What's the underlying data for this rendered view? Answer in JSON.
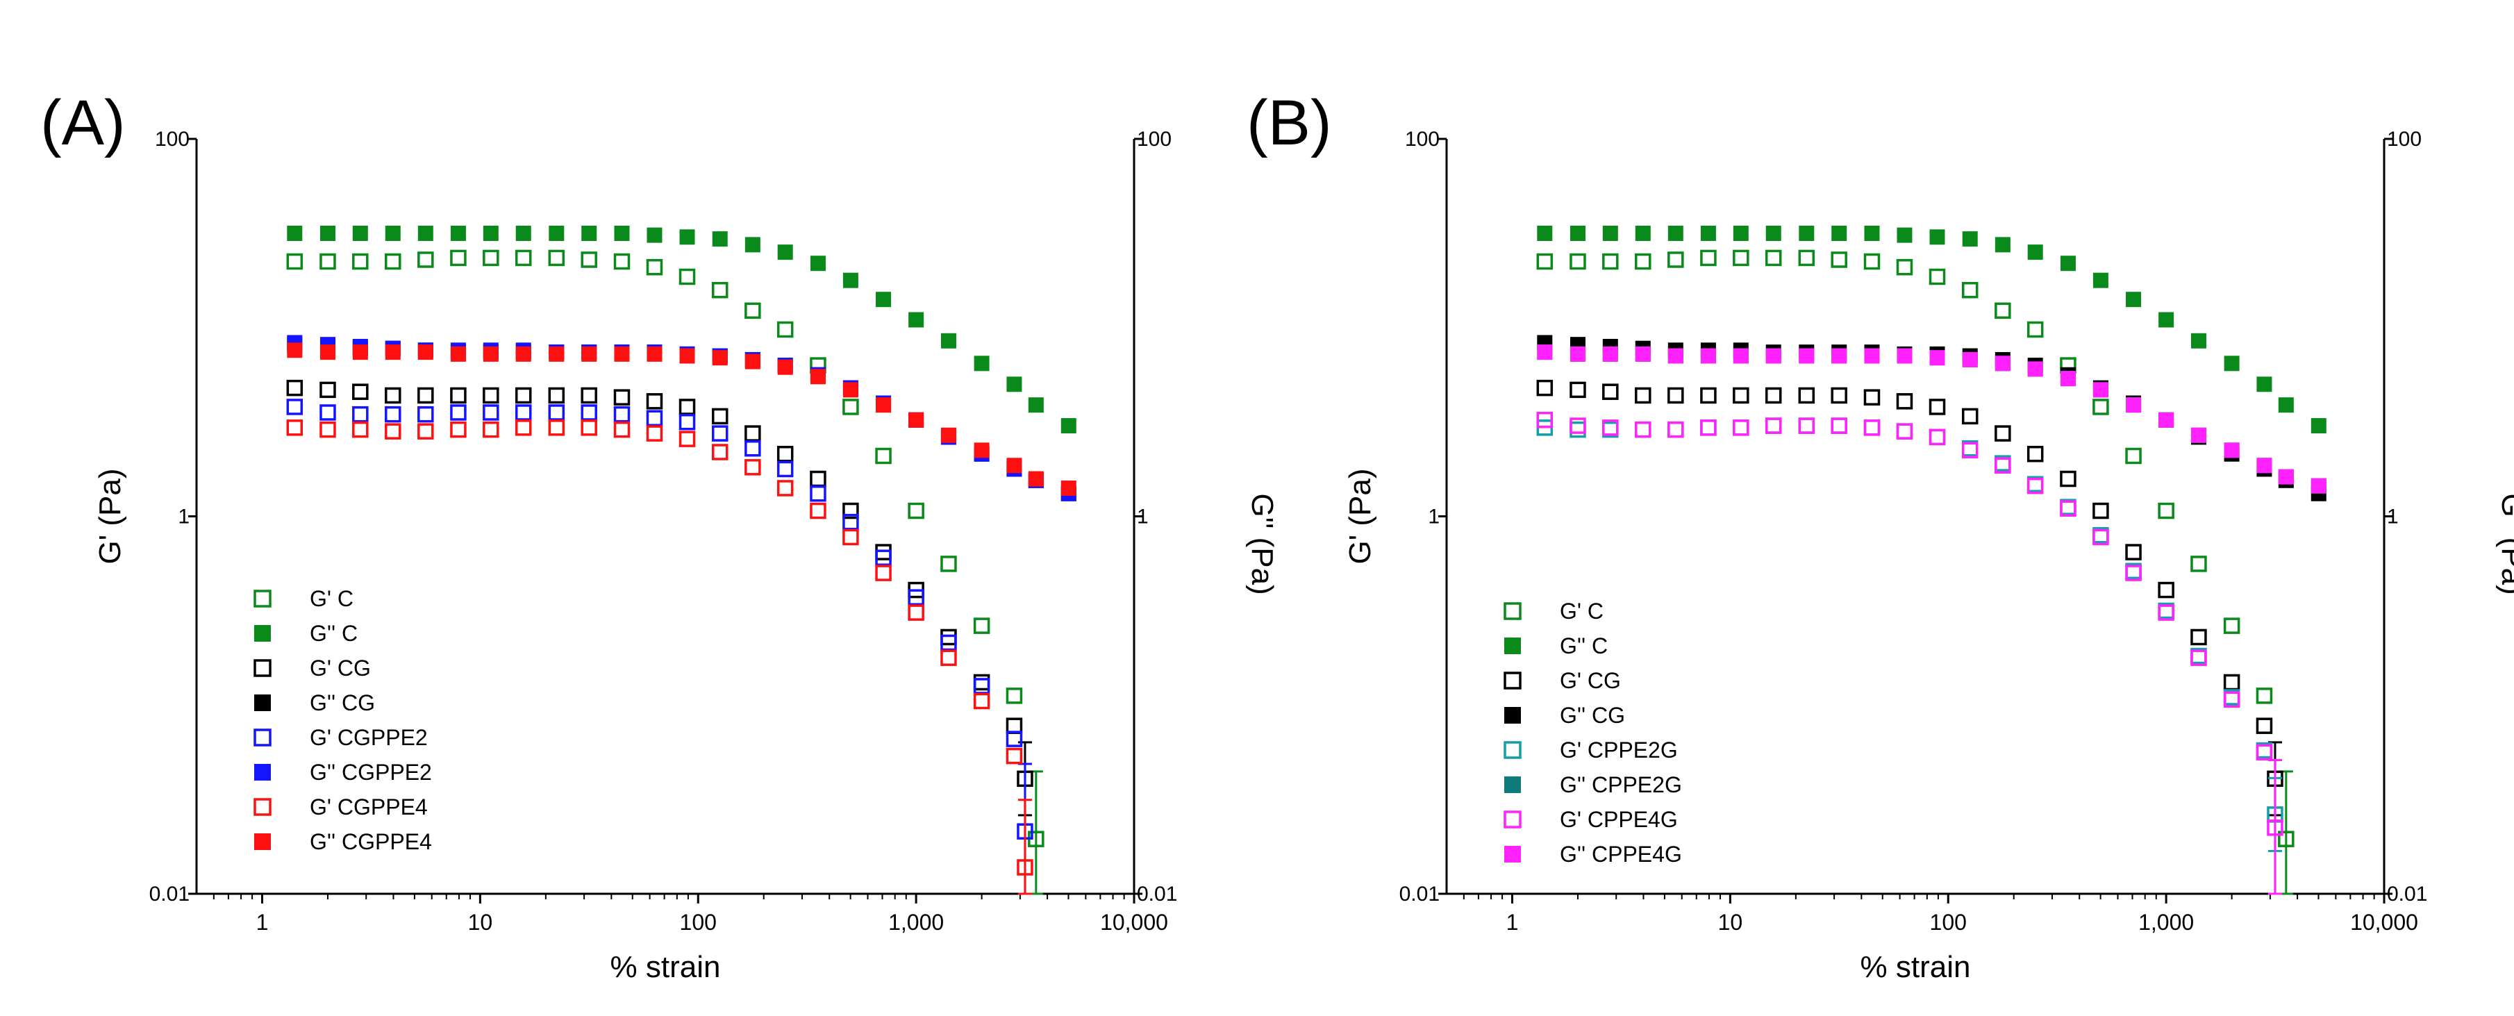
{
  "colors": {
    "green": "#0a8a1a",
    "black": "#000000",
    "blue": "#1414ff",
    "red": "#ff1010",
    "teal": "#12a0a8",
    "darkteal": "#0e7a7a",
    "magenta": "#ff22ff"
  },
  "chart_data": [
    {
      "type": "scatter",
      "panel_label": "(A)",
      "xlabel": "% strain",
      "ylabel": "G' (Pa)",
      "ylabel_right": "G'' (Pa)",
      "xscale": "log",
      "yscale": "log",
      "xlim": [
        0.5,
        10000
      ],
      "ylim": [
        0.01,
        100
      ],
      "x_ticks": [
        "1",
        "10",
        "100",
        "1,000",
        "10,000"
      ],
      "x_tick_values": [
        1,
        10,
        100,
        1000,
        10000
      ],
      "y_ticks": [
        "0.01",
        "1",
        "100"
      ],
      "y_tick_values": [
        0.01,
        1,
        100
      ],
      "y_ticks_right": [
        "0.01",
        "1",
        "100"
      ],
      "legend_position": "bottom-left",
      "series": [
        {
          "name": "G' C",
          "color": "green",
          "filled": false,
          "x": [
            1.41,
            2,
            2.82,
            3.98,
            5.62,
            7.94,
            11.2,
            15.8,
            22.4,
            31.6,
            44.7,
            63.1,
            89.1,
            126,
            178,
            251,
            355,
            501,
            708,
            1000,
            1410,
            2000,
            2820,
            3550
          ],
          "y": [
            22.4,
            22.4,
            22.4,
            22.4,
            22.9,
            23.4,
            23.4,
            23.4,
            23.4,
            22.9,
            22.4,
            20.9,
            18.6,
            15.8,
            12.3,
            9.77,
            6.31,
            3.8,
            2.09,
            1.07,
            0.56,
            0.263,
            0.112,
            0.0195
          ]
        },
        {
          "name": "G'' C",
          "color": "green",
          "filled": true,
          "x": [
            1.41,
            2,
            2.82,
            3.98,
            5.62,
            7.94,
            11.2,
            15.8,
            22.4,
            31.6,
            44.7,
            63.1,
            89.1,
            126,
            178,
            251,
            355,
            501,
            708,
            1000,
            1410,
            2000,
            2820,
            3550,
            5010
          ],
          "y": [
            31.6,
            31.6,
            31.6,
            31.6,
            31.6,
            31.6,
            31.6,
            31.6,
            31.6,
            31.6,
            31.6,
            30.9,
            30.2,
            29.5,
            27.5,
            25.1,
            21.9,
            17.8,
            14.1,
            11.0,
            8.51,
            6.46,
            5.01,
            3.89,
            3.02
          ]
        },
        {
          "name": "G' CG",
          "color": "black",
          "filled": false,
          "x": [
            1.41,
            2,
            2.82,
            3.98,
            5.62,
            7.94,
            11.2,
            15.8,
            22.4,
            31.6,
            44.7,
            63.1,
            89.1,
            126,
            178,
            251,
            355,
            501,
            708,
            1000,
            1410,
            2000,
            2820,
            3160
          ],
          "y": [
            4.79,
            4.68,
            4.57,
            4.37,
            4.37,
            4.37,
            4.37,
            4.37,
            4.37,
            4.37,
            4.27,
            4.07,
            3.8,
            3.39,
            2.75,
            2.14,
            1.58,
            1.07,
            0.646,
            0.407,
            0.229,
            0.132,
            0.0776,
            0.0407
          ]
        },
        {
          "name": "G'' CG",
          "color": "black",
          "filled": true,
          "x": [
            1.41,
            2,
            2.82,
            3.98,
            5.62,
            7.94,
            11.2,
            15.8,
            22.4,
            31.6,
            44.7,
            63.1,
            89.1,
            126,
            178,
            251,
            355,
            501,
            708,
            1000,
            1410,
            2000,
            2820,
            3550,
            5010
          ],
          "y": [
            8.13,
            7.94,
            7.76,
            7.76,
            7.59,
            7.41,
            7.41,
            7.41,
            7.41,
            7.41,
            7.41,
            7.41,
            7.24,
            7.08,
            6.76,
            6.31,
            5.62,
            4.79,
            3.98,
            3.24,
            2.63,
            2.14,
            1.78,
            1.55,
            1.32
          ]
        },
        {
          "name": "G' CGPPE2",
          "color": "blue",
          "filled": false,
          "x": [
            1.41,
            2,
            2.82,
            3.98,
            5.62,
            7.94,
            11.2,
            15.8,
            22.4,
            31.6,
            44.7,
            63.1,
            89.1,
            126,
            178,
            251,
            355,
            501,
            708,
            1000,
            1410,
            2000,
            2820,
            3160
          ],
          "y": [
            3.8,
            3.55,
            3.47,
            3.47,
            3.47,
            3.55,
            3.55,
            3.55,
            3.55,
            3.55,
            3.47,
            3.31,
            3.16,
            2.75,
            2.29,
            1.78,
            1.32,
            0.933,
            0.603,
            0.372,
            0.214,
            0.126,
            0.0661,
            0.0214
          ]
        },
        {
          "name": "G'' CGPPE2",
          "color": "blue",
          "filled": true,
          "x": [
            1.41,
            2,
            2.82,
            3.98,
            5.62,
            7.94,
            11.2,
            15.8,
            22.4,
            31.6,
            44.7,
            63.1,
            89.1,
            126,
            178,
            251,
            355,
            501,
            708,
            1000,
            1410,
            2000,
            2820,
            3550,
            5010
          ],
          "y": [
            8.32,
            8.13,
            7.94,
            7.76,
            7.59,
            7.59,
            7.59,
            7.59,
            7.41,
            7.41,
            7.41,
            7.41,
            7.24,
            7.08,
            6.76,
            6.31,
            5.62,
            4.79,
            3.98,
            3.24,
            2.63,
            2.14,
            1.78,
            1.55,
            1.32
          ]
        },
        {
          "name": "G' CGPPE4",
          "color": "red",
          "filled": false,
          "x": [
            1.41,
            2,
            2.82,
            3.98,
            5.62,
            7.94,
            11.2,
            15.8,
            22.4,
            31.6,
            44.7,
            63.1,
            89.1,
            126,
            178,
            251,
            355,
            501,
            708,
            1000,
            1410,
            2000,
            2820,
            3160
          ],
          "y": [
            2.95,
            2.88,
            2.88,
            2.82,
            2.82,
            2.88,
            2.88,
            2.95,
            2.95,
            2.95,
            2.88,
            2.75,
            2.57,
            2.19,
            1.82,
            1.41,
            1.07,
            0.776,
            0.501,
            0.309,
            0.178,
            0.105,
            0.0537,
            0.0138
          ]
        },
        {
          "name": "G'' CGPPE4",
          "color": "red",
          "filled": true,
          "x": [
            1.41,
            2,
            2.82,
            3.98,
            5.62,
            7.94,
            11.2,
            15.8,
            22.4,
            31.6,
            44.7,
            63.1,
            89.1,
            126,
            178,
            251,
            355,
            501,
            708,
            1000,
            1410,
            2000,
            2820,
            3550,
            5010
          ],
          "y": [
            7.59,
            7.41,
            7.41,
            7.41,
            7.41,
            7.24,
            7.24,
            7.24,
            7.24,
            7.24,
            7.24,
            7.24,
            7.08,
            6.92,
            6.61,
            6.17,
            5.5,
            4.68,
            3.89,
            3.24,
            2.69,
            2.24,
            1.86,
            1.58,
            1.41
          ]
        }
      ]
    },
    {
      "type": "scatter",
      "panel_label": "(B)",
      "xlabel": "% strain",
      "ylabel": "G' (Pa)",
      "ylabel_right": "G'' (Pa)",
      "xscale": "log",
      "yscale": "log",
      "xlim": [
        0.5,
        10000
      ],
      "ylim": [
        0.01,
        100
      ],
      "x_ticks": [
        "1",
        "10",
        "100",
        "1,000",
        "10,000"
      ],
      "x_tick_values": [
        1,
        10,
        100,
        1000,
        10000
      ],
      "y_ticks": [
        "0.01",
        "1",
        "100"
      ],
      "y_tick_values": [
        0.01,
        1,
        100
      ],
      "y_ticks_right": [
        "0.01",
        "1",
        "100"
      ],
      "legend_position": "bottom-left",
      "series": [
        {
          "name": "G' C",
          "color": "green",
          "filled": false,
          "x": [
            1.41,
            2,
            2.82,
            3.98,
            5.62,
            7.94,
            11.2,
            15.8,
            22.4,
            31.6,
            44.7,
            63.1,
            89.1,
            126,
            178,
            251,
            355,
            501,
            708,
            1000,
            1410,
            2000,
            2820,
            3550
          ],
          "y": [
            22.4,
            22.4,
            22.4,
            22.4,
            22.9,
            23.4,
            23.4,
            23.4,
            23.4,
            22.9,
            22.4,
            20.9,
            18.6,
            15.8,
            12.3,
            9.77,
            6.31,
            3.8,
            2.09,
            1.07,
            0.56,
            0.263,
            0.112,
            0.0195
          ]
        },
        {
          "name": "G'' C",
          "color": "green",
          "filled": true,
          "x": [
            1.41,
            2,
            2.82,
            3.98,
            5.62,
            7.94,
            11.2,
            15.8,
            22.4,
            31.6,
            44.7,
            63.1,
            89.1,
            126,
            178,
            251,
            355,
            501,
            708,
            1000,
            1410,
            2000,
            2820,
            3550,
            5010
          ],
          "y": [
            31.6,
            31.6,
            31.6,
            31.6,
            31.6,
            31.6,
            31.6,
            31.6,
            31.6,
            31.6,
            31.6,
            30.9,
            30.2,
            29.5,
            27.5,
            25.1,
            21.9,
            17.8,
            14.1,
            11.0,
            8.51,
            6.46,
            5.01,
            3.89,
            3.02
          ]
        },
        {
          "name": "G' CG",
          "color": "black",
          "filled": false,
          "x": [
            1.41,
            2,
            2.82,
            3.98,
            5.62,
            7.94,
            11.2,
            15.8,
            22.4,
            31.6,
            44.7,
            63.1,
            89.1,
            126,
            178,
            251,
            355,
            501,
            708,
            1000,
            1410,
            2000,
            2820,
            3160
          ],
          "y": [
            4.79,
            4.68,
            4.57,
            4.37,
            4.37,
            4.37,
            4.37,
            4.37,
            4.37,
            4.37,
            4.27,
            4.07,
            3.8,
            3.39,
            2.75,
            2.14,
            1.58,
            1.07,
            0.646,
            0.407,
            0.229,
            0.132,
            0.0776,
            0.0407
          ]
        },
        {
          "name": "G'' CG",
          "color": "black",
          "filled": true,
          "x": [
            1.41,
            2,
            2.82,
            3.98,
            5.62,
            7.94,
            11.2,
            15.8,
            22.4,
            31.6,
            44.7,
            63.1,
            89.1,
            126,
            178,
            251,
            355,
            501,
            708,
            1000,
            1410,
            2000,
            2820,
            3550,
            5010
          ],
          "y": [
            8.32,
            8.13,
            7.94,
            7.76,
            7.59,
            7.59,
            7.59,
            7.41,
            7.41,
            7.41,
            7.41,
            7.24,
            7.24,
            7.08,
            6.76,
            6.31,
            5.62,
            4.79,
            3.98,
            3.24,
            2.63,
            2.14,
            1.78,
            1.55,
            1.32
          ]
        },
        {
          "name": "G' CPPE2G",
          "color": "teal",
          "filled": false,
          "x": [
            1.41,
            2,
            2.82,
            3.98,
            5.62,
            7.94,
            11.2,
            15.8,
            22.4,
            31.6,
            44.7,
            63.1,
            89.1,
            126,
            178,
            251,
            355,
            501,
            708,
            1000,
            1410,
            2000,
            2820,
            3160
          ],
          "y": [
            2.95,
            2.88,
            2.88,
            2.88,
            2.88,
            2.95,
            2.95,
            3.02,
            3.02,
            3.02,
            2.95,
            2.82,
            2.63,
            2.29,
            1.91,
            1.48,
            1.12,
            0.794,
            0.513,
            0.316,
            0.182,
            0.11,
            0.0575,
            0.0263
          ]
        },
        {
          "name": "G'' CPPE2G",
          "color": "darkteal",
          "filled": true,
          "x": [
            1.41,
            2,
            2.82,
            3.98,
            5.62,
            7.94,
            11.2,
            15.8,
            22.4,
            31.6,
            44.7,
            63.1,
            89.1,
            126,
            178,
            251,
            355,
            501,
            708,
            1000,
            1410,
            2000,
            2820,
            3550,
            5010
          ],
          "y": [
            7.41,
            7.24,
            7.24,
            7.24,
            7.08,
            7.08,
            7.08,
            7.08,
            7.08,
            7.08,
            7.08,
            7.08,
            6.92,
            6.76,
            6.46,
            6.03,
            5.37,
            4.68,
            3.89,
            3.24,
            2.69,
            2.24,
            1.86,
            1.62,
            1.45
          ]
        },
        {
          "name": "G' CPPE4G",
          "color": "magenta",
          "filled": false,
          "x": [
            1.41,
            2,
            2.82,
            3.98,
            5.62,
            7.94,
            11.2,
            15.8,
            22.4,
            31.6,
            44.7,
            63.1,
            89.1,
            126,
            178,
            251,
            355,
            501,
            708,
            1000,
            1410,
            2000,
            2820,
            3160
          ],
          "y": [
            3.24,
            3.02,
            2.95,
            2.88,
            2.88,
            2.95,
            2.95,
            3.02,
            3.02,
            3.02,
            2.95,
            2.82,
            2.63,
            2.24,
            1.86,
            1.45,
            1.1,
            0.776,
            0.501,
            0.309,
            0.178,
            0.107,
            0.0562,
            0.0224
          ]
        },
        {
          "name": "G'' CPPE4G",
          "color": "magenta",
          "filled": true,
          "x": [
            1.41,
            2,
            2.82,
            3.98,
            5.62,
            7.94,
            11.2,
            15.8,
            22.4,
            31.6,
            44.7,
            63.1,
            89.1,
            126,
            178,
            251,
            355,
            501,
            708,
            1000,
            1410,
            2000,
            2820,
            3550,
            5010
          ],
          "y": [
            7.41,
            7.24,
            7.24,
            7.24,
            7.08,
            7.08,
            7.08,
            7.08,
            7.08,
            7.08,
            7.08,
            7.08,
            6.92,
            6.76,
            6.46,
            6.03,
            5.37,
            4.68,
            3.89,
            3.24,
            2.69,
            2.24,
            1.86,
            1.62,
            1.45
          ]
        }
      ]
    }
  ]
}
